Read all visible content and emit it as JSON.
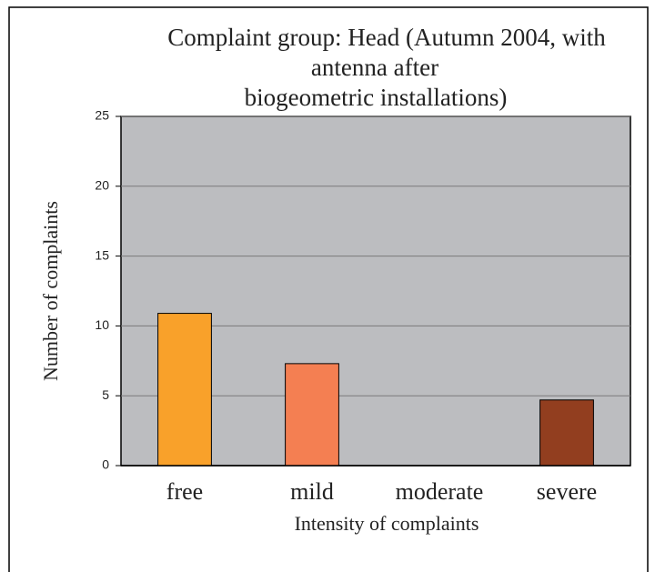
{
  "chart_data": {
    "type": "bar",
    "title": [
      "Complaint group: Head (Autumn 2004, with",
      "antenna after",
      "biogeometric installations)"
    ],
    "xlabel": "Intensity of complaints",
    "ylabel": "Number of complaints",
    "categories": [
      "free",
      "mild",
      "moderate",
      "severe"
    ],
    "values": [
      10.9,
      7.3,
      0,
      4.7
    ],
    "colors": [
      "#f9a12a",
      "#f47f52",
      "#c0c0c0",
      "#923e1f"
    ],
    "ylim": [
      0,
      25
    ],
    "yticks": [
      0,
      5,
      10,
      15,
      20,
      25
    ],
    "grid": true
  }
}
